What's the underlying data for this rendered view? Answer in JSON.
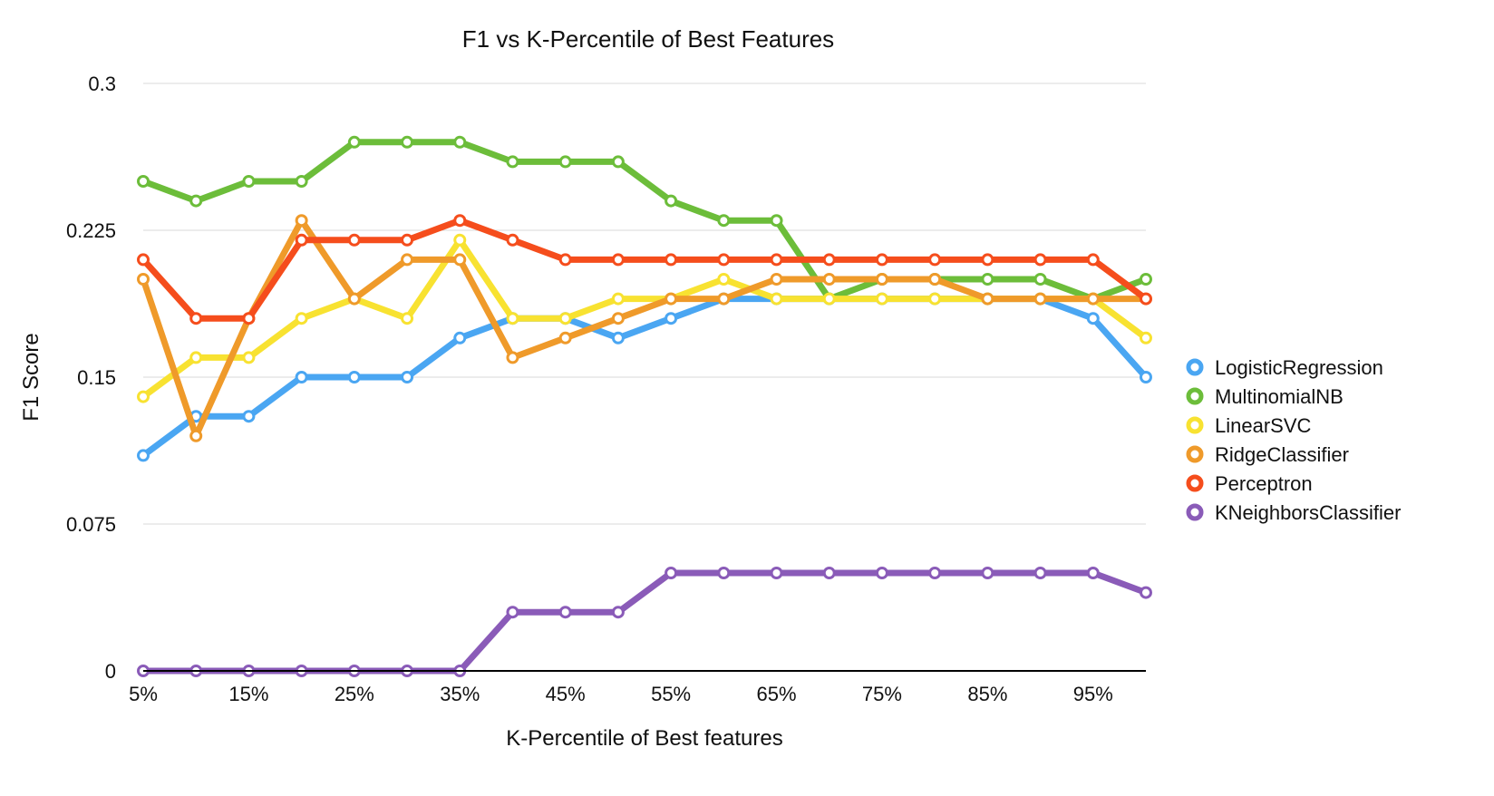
{
  "chart_data": {
    "type": "line",
    "title": "F1 vs K-Percentile of Best Features",
    "xlabel": "K-Percentile of Best features",
    "ylabel": "F1 Score",
    "x": [
      "5%",
      "10%",
      "15%",
      "20%",
      "25%",
      "30%",
      "35%",
      "40%",
      "45%",
      "50%",
      "55%",
      "60%",
      "65%",
      "70%",
      "75%",
      "80%",
      "85%",
      "90%",
      "95%",
      "100%"
    ],
    "x_tick_labels": [
      "5%",
      "15%",
      "25%",
      "35%",
      "45%",
      "55%",
      "65%",
      "75%",
      "85%",
      "95%"
    ],
    "y_ticks": [
      "0",
      "0.075",
      "0.15",
      "0.225",
      "0.3"
    ],
    "ylim": [
      0,
      0.3
    ],
    "grid": true,
    "legend_position": "right",
    "series": [
      {
        "name": "LogisticRegression",
        "color": "#4aa6f2",
        "values": [
          0.11,
          0.13,
          0.13,
          0.15,
          0.15,
          0.15,
          0.17,
          0.18,
          0.18,
          0.17,
          0.18,
          0.19,
          0.19,
          0.19,
          0.19,
          0.19,
          0.19,
          0.19,
          0.18,
          0.15
        ]
      },
      {
        "name": "MultinomialNB",
        "color": "#6cbd3a",
        "values": [
          0.25,
          0.24,
          0.25,
          0.25,
          0.27,
          0.27,
          0.27,
          0.26,
          0.26,
          0.26,
          0.24,
          0.23,
          0.23,
          0.19,
          0.2,
          0.2,
          0.2,
          0.2,
          0.19,
          0.2
        ]
      },
      {
        "name": "LinearSVC",
        "color": "#f8e231",
        "values": [
          0.14,
          0.16,
          0.16,
          0.18,
          0.19,
          0.18,
          0.22,
          0.18,
          0.18,
          0.19,
          0.19,
          0.2,
          0.19,
          0.19,
          0.19,
          0.19,
          0.19,
          0.19,
          0.19,
          0.17
        ]
      },
      {
        "name": "RidgeClassifier",
        "color": "#ef9a2a",
        "values": [
          0.2,
          0.12,
          0.18,
          0.23,
          0.19,
          0.21,
          0.21,
          0.16,
          0.17,
          0.18,
          0.19,
          0.19,
          0.2,
          0.2,
          0.2,
          0.2,
          0.19,
          0.19,
          0.19,
          0.19
        ]
      },
      {
        "name": "Perceptron",
        "color": "#f54d1c",
        "values": [
          0.21,
          0.18,
          0.18,
          0.22,
          0.22,
          0.22,
          0.23,
          0.22,
          0.21,
          0.21,
          0.21,
          0.21,
          0.21,
          0.21,
          0.21,
          0.21,
          0.21,
          0.21,
          0.21,
          0.19
        ]
      },
      {
        "name": "KNeighborsClassifier",
        "color": "#8a5bb8",
        "values": [
          0,
          0,
          0,
          0,
          0,
          0,
          0,
          0.03,
          0.03,
          0.03,
          0.05,
          0.05,
          0.05,
          0.05,
          0.05,
          0.05,
          0.05,
          0.05,
          0.05,
          0.04
        ]
      }
    ]
  }
}
